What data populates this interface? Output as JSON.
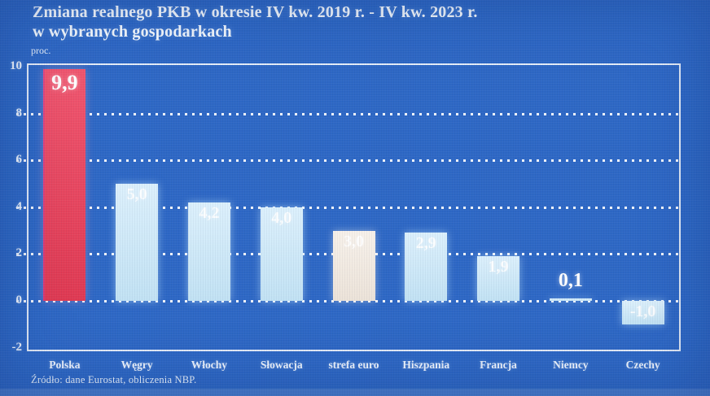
{
  "title": {
    "line1": "Zmiana realnego PKB w okresie IV kw. 2019 r. - IV kw. 2023 r.",
    "line2": "w wybranych gospodarkach"
  },
  "axis_unit": "proc.",
  "source": "Źródło: dane Eurostat, obliczenia NBP.",
  "colors": {
    "background": "#2e68c5",
    "bar_default": "#cfe9f8",
    "bar_highlight": "#e84560",
    "bar_eurozone": "#f3ece3",
    "frame": "#f0f6fc",
    "text": "#ffffff"
  },
  "chart_data": {
    "type": "bar",
    "title": "Zmiana realnego PKB w okresie IV kw. 2019 r. - IV kw. 2023 r. w wybranych gospodarkach",
    "xlabel": "",
    "ylabel": "proc.",
    "ylim": [
      -2,
      10
    ],
    "yticks": [
      10,
      8,
      6,
      4,
      2,
      0,
      -2
    ],
    "gridlines": [
      8,
      6,
      4,
      2,
      0
    ],
    "grid": "dotted",
    "legend": "none",
    "categories": [
      "Polska",
      "Węgry",
      "Włochy",
      "Słowacja",
      "strefa euro",
      "Hiszpania",
      "Francja",
      "Niemcy",
      "Czechy"
    ],
    "values": [
      9.9,
      5.0,
      4.2,
      4.0,
      3.0,
      2.9,
      1.9,
      0.1,
      -1.0
    ],
    "value_labels": [
      "9,9",
      "5,0",
      "4,2",
      "4,0",
      "3,0",
      "2,9",
      "1,9",
      "0,1",
      "-1,0"
    ],
    "bar_colors": [
      "highlight",
      "default",
      "default",
      "default",
      "eurozone",
      "default",
      "default",
      "default",
      "default"
    ],
    "source": "Źródło: dane Eurostat, obliczenia NBP."
  }
}
